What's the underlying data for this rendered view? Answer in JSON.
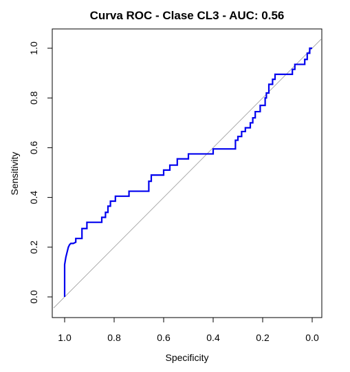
{
  "chart_data": {
    "type": "line",
    "title": "Curva ROC - Clase CL3 - AUC: 0.56",
    "xlabel": "Specificity",
    "ylabel": "Sensitivity",
    "x_reversed": true,
    "xlim": [
      1.0,
      0.0
    ],
    "ylim": [
      0.0,
      1.0
    ],
    "x_ticks": [
      1.0,
      0.8,
      0.6,
      0.4,
      0.2,
      0.0
    ],
    "x_tick_labels": [
      "1.0",
      "0.8",
      "0.6",
      "0.4",
      "0.2",
      "0.0"
    ],
    "y_ticks": [
      0.0,
      0.2,
      0.4,
      0.6,
      0.8,
      1.0
    ],
    "y_tick_labels": [
      "0.0",
      "0.2",
      "0.4",
      "0.6",
      "0.8",
      "1.0"
    ],
    "grid": false,
    "reference_line": {
      "from": [
        1.0,
        0.0
      ],
      "to": [
        0.0,
        1.0
      ],
      "color": "#999999"
    },
    "series": [
      {
        "color": "#0000ee",
        "specificity": [
          1.0,
          1.0,
          0.995,
          0.99,
          0.985,
          0.98,
          0.975,
          0.965,
          0.955,
          0.955,
          0.93,
          0.93,
          0.91,
          0.91,
          0.85,
          0.85,
          0.835,
          0.835,
          0.825,
          0.825,
          0.815,
          0.815,
          0.795,
          0.795,
          0.74,
          0.74,
          0.66,
          0.66,
          0.65,
          0.65,
          0.6,
          0.6,
          0.575,
          0.575,
          0.545,
          0.545,
          0.5,
          0.5,
          0.4,
          0.4,
          0.31,
          0.31,
          0.3,
          0.3,
          0.285,
          0.285,
          0.27,
          0.27,
          0.25,
          0.25,
          0.24,
          0.24,
          0.23,
          0.23,
          0.21,
          0.21,
          0.19,
          0.19,
          0.185,
          0.185,
          0.175,
          0.175,
          0.16,
          0.16,
          0.15,
          0.15,
          0.08,
          0.08,
          0.07,
          0.07,
          0.03,
          0.03,
          0.02,
          0.02,
          0.01,
          0.01,
          0.0
        ],
        "sensitivity": [
          0.0,
          0.13,
          0.16,
          0.18,
          0.2,
          0.21,
          0.215,
          0.215,
          0.22,
          0.235,
          0.235,
          0.275,
          0.275,
          0.3,
          0.3,
          0.32,
          0.32,
          0.34,
          0.34,
          0.365,
          0.365,
          0.385,
          0.385,
          0.405,
          0.405,
          0.425,
          0.425,
          0.465,
          0.465,
          0.49,
          0.49,
          0.51,
          0.51,
          0.53,
          0.53,
          0.555,
          0.555,
          0.575,
          0.575,
          0.595,
          0.595,
          0.63,
          0.63,
          0.645,
          0.645,
          0.665,
          0.665,
          0.68,
          0.68,
          0.7,
          0.7,
          0.72,
          0.72,
          0.745,
          0.745,
          0.77,
          0.77,
          0.8,
          0.8,
          0.82,
          0.82,
          0.855,
          0.855,
          0.875,
          0.875,
          0.895,
          0.895,
          0.915,
          0.915,
          0.935,
          0.935,
          0.955,
          0.955,
          0.98,
          0.98,
          1.0,
          1.0
        ]
      }
    ]
  }
}
